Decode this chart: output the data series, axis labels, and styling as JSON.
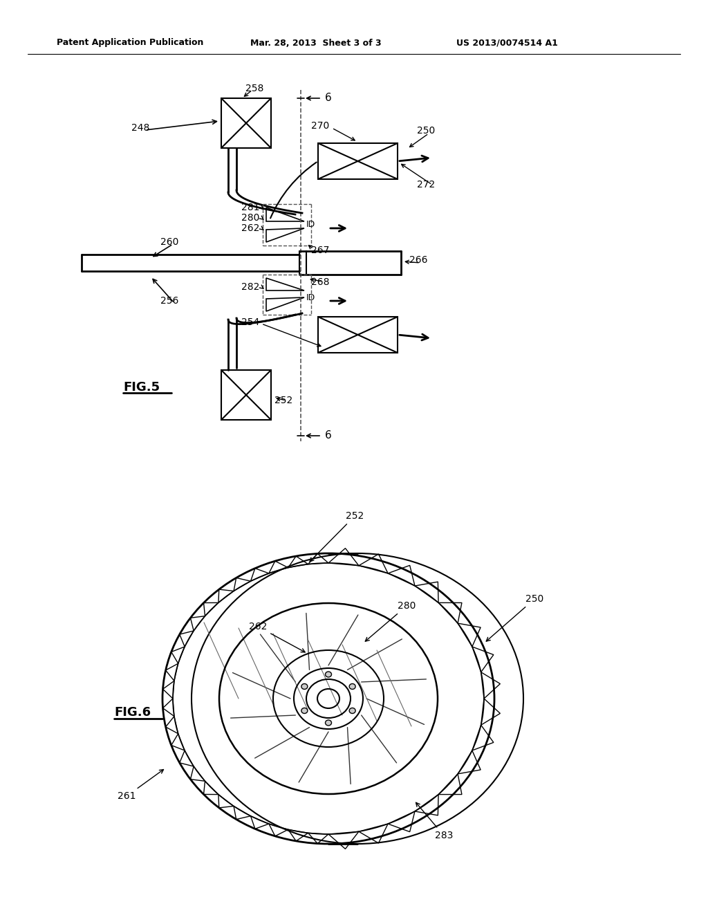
{
  "header_left": "Patent Application Publication",
  "header_mid": "Mar. 28, 2013  Sheet 3 of 3",
  "header_right": "US 2013/0074514 A1",
  "bg_color": "#ffffff",
  "line_color": "#000000",
  "text_color": "#000000"
}
